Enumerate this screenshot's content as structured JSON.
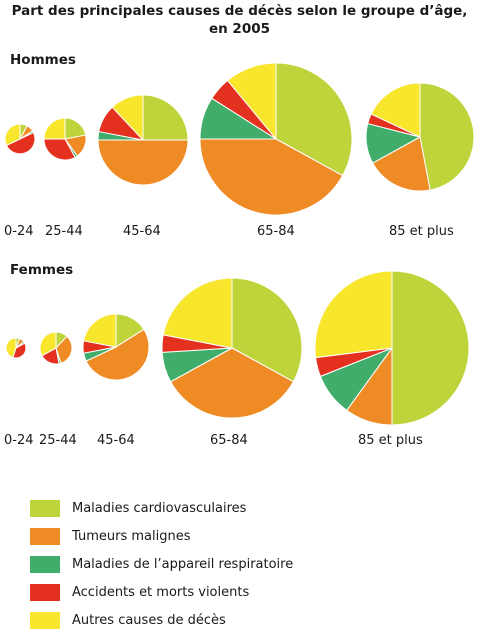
{
  "title_line1": "Part des principales causes de décès selon le groupe d’âge,",
  "title_line2": "en 2005",
  "colors": {
    "cardio": "#bfd43a",
    "tumeurs": "#ef8b25",
    "respiratoire": "#40ad6a",
    "accidents": "#e3301f",
    "autres": "#f7e62b"
  },
  "legend": [
    {
      "key": "cardio",
      "label": "Maladies cardiovasculaires"
    },
    {
      "key": "tumeurs",
      "label": "Tumeurs malignes"
    },
    {
      "key": "respiratoire",
      "label": "Maladies de l’appareil respiratoire"
    },
    {
      "key": "accidents",
      "label": "Accidents et morts violents"
    },
    {
      "key": "autres",
      "label": "Autres causes de décès"
    }
  ],
  "chart_data": [
    {
      "type": "pie",
      "group": "Hommes",
      "categories": [
        "0-24",
        "25-44",
        "45-64",
        "65-84",
        "85 et plus"
      ],
      "series": [
        {
          "name": "Maladies cardiovasculaires",
          "values": [
            8,
            22,
            25,
            33,
            47
          ]
        },
        {
          "name": "Tumeurs malignes",
          "values": [
            8,
            18,
            50,
            42,
            20
          ]
        },
        {
          "name": "Maladies de l’appareil respiratoire",
          "values": [
            2,
            2,
            3,
            9,
            12
          ]
        },
        {
          "name": "Accidents et morts violents",
          "values": [
            50,
            33,
            10,
            5,
            3
          ]
        },
        {
          "name": "Autres causes de décès",
          "values": [
            32,
            25,
            12,
            11,
            18
          ]
        }
      ]
    },
    {
      "type": "pie",
      "group": "Femmes",
      "categories": [
        "0-24",
        "25-44",
        "45-64",
        "65-84",
        "85 et plus"
      ],
      "series": [
        {
          "name": "Maladies cardiovasculaires",
          "values": [
            6,
            12,
            16,
            33,
            50
          ]
        },
        {
          "name": "Tumeurs malignes",
          "values": [
            8,
            33,
            52,
            34,
            10
          ]
        },
        {
          "name": "Maladies de l’appareil respiratoire",
          "values": [
            3,
            2,
            4,
            7,
            9
          ]
        },
        {
          "name": "Accidents et morts violents",
          "values": [
            38,
            20,
            6,
            4,
            4
          ]
        },
        {
          "name": "Autres causes de décès",
          "values": [
            45,
            33,
            22,
            22,
            27
          ]
        }
      ]
    }
  ]
}
